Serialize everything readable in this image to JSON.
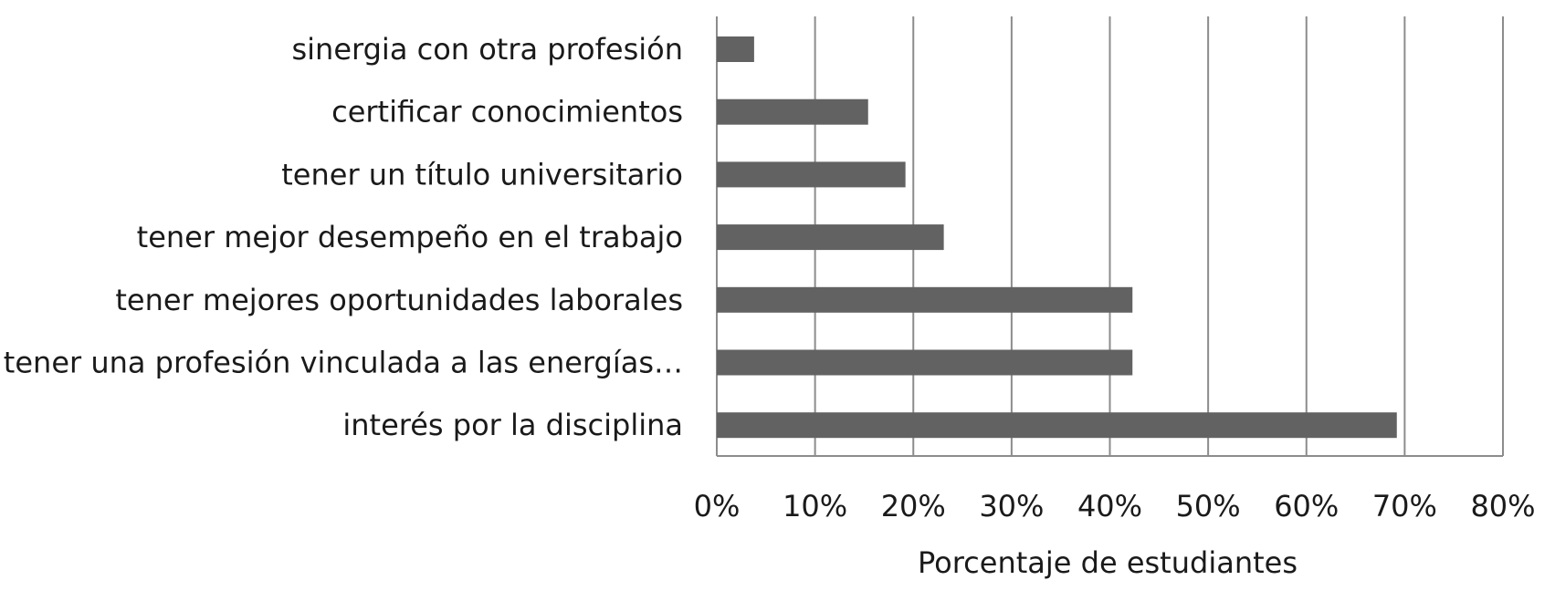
{
  "chart_data": {
    "type": "bar",
    "orientation": "horizontal",
    "categories": [
      "sinergia con otra profesión",
      "certificar conocimientos",
      "tener un título universitario",
      "tener mejor desempeño en el trabajo",
      "tener mejores oportunidades laborales",
      "tener una profesión vinculada a las energías…",
      "interés por la disciplina"
    ],
    "values": [
      3.8,
      15.4,
      19.2,
      23.1,
      42.3,
      42.3,
      69.2
    ],
    "value_unit": "%",
    "xlim": [
      0,
      80
    ],
    "xticks": [
      0,
      10,
      20,
      30,
      40,
      50,
      60,
      70,
      80
    ],
    "tick_labels": [
      "0%",
      "10%",
      "20%",
      "30%",
      "40%",
      "50%",
      "60%",
      "70%",
      "80%"
    ],
    "xlabel": "Porcentaje de estudiantes",
    "ylabel": "",
    "title": "",
    "grid": "vertical",
    "legend": "none",
    "colors": {
      "bar": "#626262",
      "grid": "#8c8c8c",
      "text": "#1a1a1a"
    }
  }
}
